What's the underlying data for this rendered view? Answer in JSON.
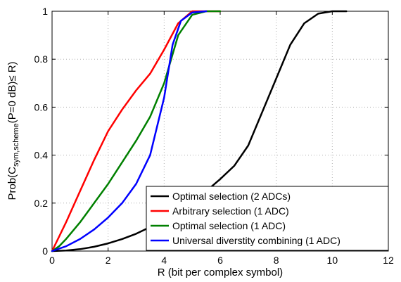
{
  "chart_data": {
    "type": "line",
    "xlabel": "R (bit per complex symbol)",
    "ylabel": {
      "prefix": "Prob(C",
      "subscript": "sym,scheme",
      "suffix": "(P=0 dB)≤ R)"
    },
    "xlim": [
      0,
      12
    ],
    "ylim": [
      0,
      1
    ],
    "xticks": [
      "0",
      "2",
      "4",
      "6",
      "8",
      "10",
      "12"
    ],
    "yticks": [
      "0",
      "0.2",
      "0.4",
      "0.6",
      "0.8",
      "1"
    ],
    "grid": true,
    "legend_position": "bottom-right",
    "series": [
      {
        "name": "Optimal selection (2 ADCs)",
        "color": "#000000",
        "points": [
          [
            0,
            0
          ],
          [
            0.5,
            0.002
          ],
          [
            1,
            0.008
          ],
          [
            1.5,
            0.018
          ],
          [
            2,
            0.032
          ],
          [
            2.5,
            0.05
          ],
          [
            3,
            0.072
          ],
          [
            3.5,
            0.1
          ],
          [
            4,
            0.13
          ],
          [
            4.5,
            0.165
          ],
          [
            5,
            0.205
          ],
          [
            5.5,
            0.25
          ],
          [
            6,
            0.3
          ],
          [
            6.5,
            0.355
          ],
          [
            7,
            0.44
          ],
          [
            7.5,
            0.58
          ],
          [
            8,
            0.72
          ],
          [
            8.5,
            0.86
          ],
          [
            9,
            0.95
          ],
          [
            9.5,
            0.99
          ],
          [
            10,
            1.0
          ],
          [
            10.5,
            1.0
          ]
        ]
      },
      {
        "name": "Arbitrary selection (1 ADC)",
        "color": "#ff0000",
        "points": [
          [
            0,
            0
          ],
          [
            0.25,
            0.06
          ],
          [
            0.5,
            0.12
          ],
          [
            1,
            0.25
          ],
          [
            1.5,
            0.38
          ],
          [
            2,
            0.5
          ],
          [
            2.5,
            0.59
          ],
          [
            3,
            0.67
          ],
          [
            3.5,
            0.74
          ],
          [
            4,
            0.84
          ],
          [
            4.5,
            0.95
          ],
          [
            5,
            1.0
          ],
          [
            5.5,
            1.0
          ],
          [
            6,
            1.0
          ]
        ]
      },
      {
        "name": "Optimal selection (1 ADC)",
        "color": "#008000",
        "points": [
          [
            0,
            0
          ],
          [
            0.25,
            0.02
          ],
          [
            0.5,
            0.05
          ],
          [
            1,
            0.12
          ],
          [
            1.5,
            0.2
          ],
          [
            2,
            0.28
          ],
          [
            2.5,
            0.37
          ],
          [
            3,
            0.46
          ],
          [
            3.5,
            0.56
          ],
          [
            4,
            0.7
          ],
          [
            4.5,
            0.9
          ],
          [
            5,
            0.985
          ],
          [
            5.5,
            1.0
          ],
          [
            6,
            1.0
          ]
        ]
      },
      {
        "name": "Universal diverstity combining (1 ADC)",
        "color": "#0000ff",
        "points": [
          [
            0,
            0
          ],
          [
            0.5,
            0.02
          ],
          [
            1,
            0.05
          ],
          [
            1.5,
            0.09
          ],
          [
            2,
            0.14
          ],
          [
            2.5,
            0.2
          ],
          [
            3,
            0.28
          ],
          [
            3.5,
            0.4
          ],
          [
            4,
            0.64
          ],
          [
            4.3,
            0.86
          ],
          [
            4.6,
            0.96
          ],
          [
            5,
            0.995
          ],
          [
            5.5,
            1.0
          ]
        ]
      }
    ]
  }
}
